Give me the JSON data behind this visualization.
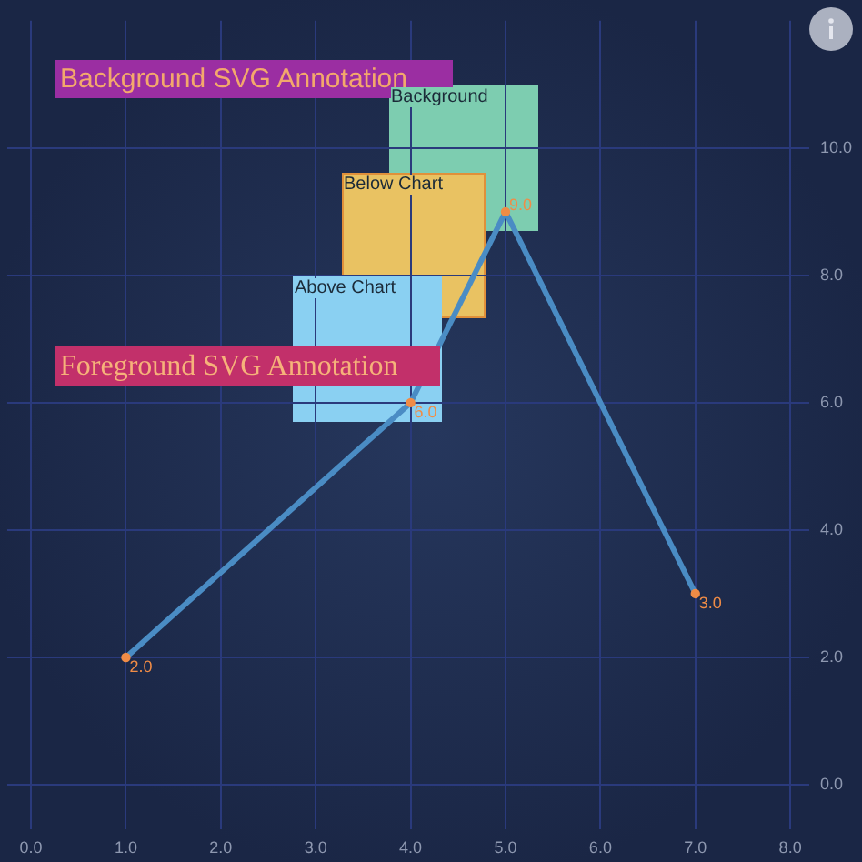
{
  "chart_data": {
    "type": "line",
    "x": [
      1,
      4,
      5,
      7
    ],
    "values": [
      2,
      6,
      9,
      3
    ],
    "color": "#4a8cc4",
    "colors": [
      "#f08c46",
      "#f08c46",
      "#f08c46",
      "#f08c46"
    ],
    "value_labels": [
      "2.0",
      "6.0",
      "9.0",
      "3.0"
    ],
    "marker": "circle",
    "xlim": [
      -0.25,
      8.2
    ],
    "ylim": [
      -0.7,
      12
    ],
    "xticks": [
      {
        "value": 0,
        "label": "0.0"
      },
      {
        "value": 1,
        "label": "1.0"
      },
      {
        "value": 2,
        "label": "2.0"
      },
      {
        "value": 3,
        "label": "3.0"
      },
      {
        "value": 4,
        "label": "4.0"
      },
      {
        "value": 5,
        "label": "5.0"
      },
      {
        "value": 6,
        "label": "6.0"
      },
      {
        "value": 7,
        "label": "7.0"
      },
      {
        "value": 8,
        "label": "8.0"
      }
    ],
    "yticks": [
      {
        "value": 0,
        "label": "0.0"
      },
      {
        "value": 2,
        "label": "2.0"
      },
      {
        "value": 4,
        "label": "4.0"
      },
      {
        "value": 6,
        "label": "6.0"
      },
      {
        "value": 8,
        "label": "8.0"
      },
      {
        "value": 10,
        "label": "10.0"
      }
    ],
    "grid": true,
    "annotations": [
      "Background SVG Annotation",
      "Background",
      "Below Chart",
      "Above Chart",
      "Foreground SVG Annotation"
    ]
  }
}
